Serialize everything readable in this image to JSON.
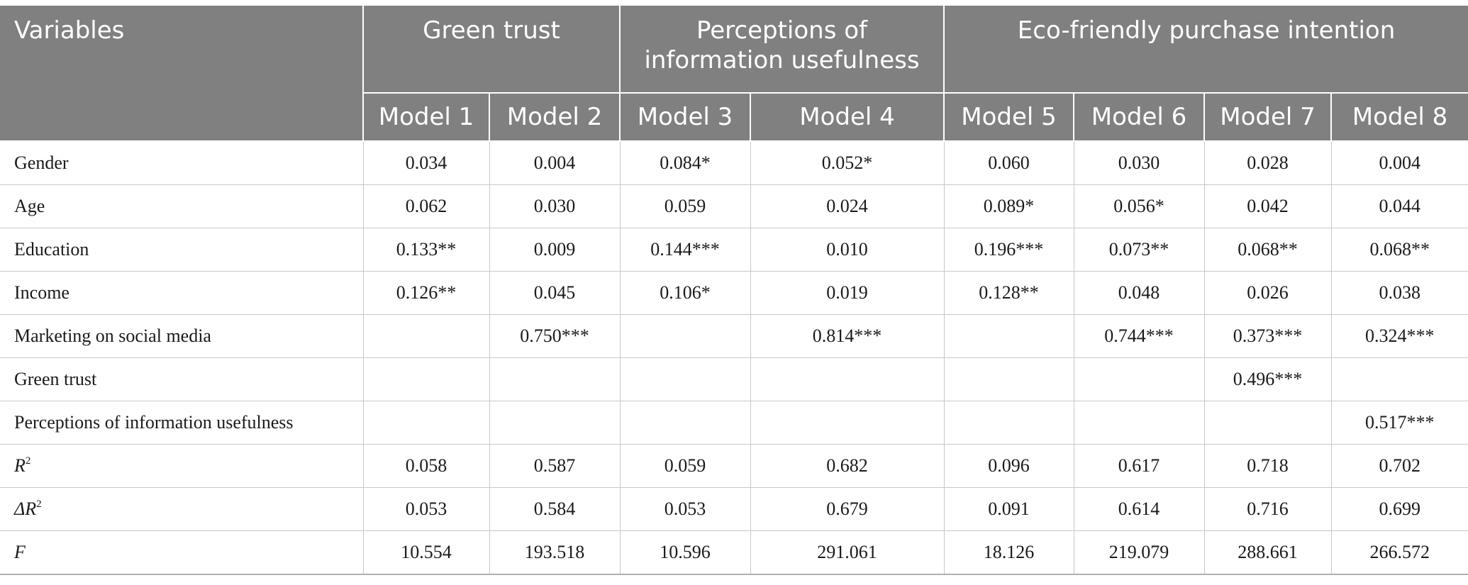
{
  "header": {
    "variables": "Variables",
    "groups": [
      {
        "label": "Green trust"
      },
      {
        "label_line1": "Perceptions of",
        "label_line2": "information usefulness"
      },
      {
        "label": "Eco-friendly purchase intention"
      }
    ],
    "models": [
      "Model 1",
      "Model 2",
      "Model 3",
      "Model 4",
      "Model 5",
      "Model 6",
      "Model 7",
      "Model 8"
    ]
  },
  "rows": [
    {
      "label": "Gender",
      "values": [
        "0.034",
        "0.004",
        "0.084*",
        "0.052*",
        "0.060",
        "0.030",
        "0.028",
        "0.004"
      ]
    },
    {
      "label": "Age",
      "values": [
        "0.062",
        "0.030",
        "0.059",
        "0.024",
        "0.089*",
        "0.056*",
        "0.042",
        "0.044"
      ]
    },
    {
      "label": "Education",
      "values": [
        "0.133**",
        "0.009",
        "0.144***",
        "0.010",
        "0.196***",
        "0.073**",
        "0.068**",
        "0.068**"
      ]
    },
    {
      "label": "Income",
      "values": [
        "0.126**",
        "0.045",
        "0.106*",
        "0.019",
        "0.128**",
        "0.048",
        "0.026",
        "0.038"
      ]
    },
    {
      "label": "Marketing on social media",
      "values": [
        "",
        "0.750***",
        "",
        "0.814***",
        "",
        "0.744***",
        "0.373***",
        "0.324***"
      ]
    },
    {
      "label": "Green trust",
      "values": [
        "",
        "",
        "",
        "",
        "",
        "",
        "0.496***",
        ""
      ]
    },
    {
      "label": "Perceptions of information usefulness",
      "values": [
        "",
        "",
        "",
        "",
        "",
        "",
        "",
        "0.517***"
      ]
    },
    {
      "label": "R",
      "sup": "2",
      "values": [
        "0.058",
        "0.587",
        "0.059",
        "0.682",
        "0.096",
        "0.617",
        "0.718",
        "0.702"
      ]
    },
    {
      "label": "ΔR",
      "sup": "2",
      "values": [
        "0.053",
        "0.584",
        "0.053",
        "0.679",
        "0.091",
        "0.614",
        "0.716",
        "0.699"
      ]
    },
    {
      "label": "F",
      "values": [
        "10.554",
        "193.518",
        "10.596",
        "291.061",
        "18.126",
        "219.079",
        "288.661",
        "266.572"
      ]
    }
  ]
}
